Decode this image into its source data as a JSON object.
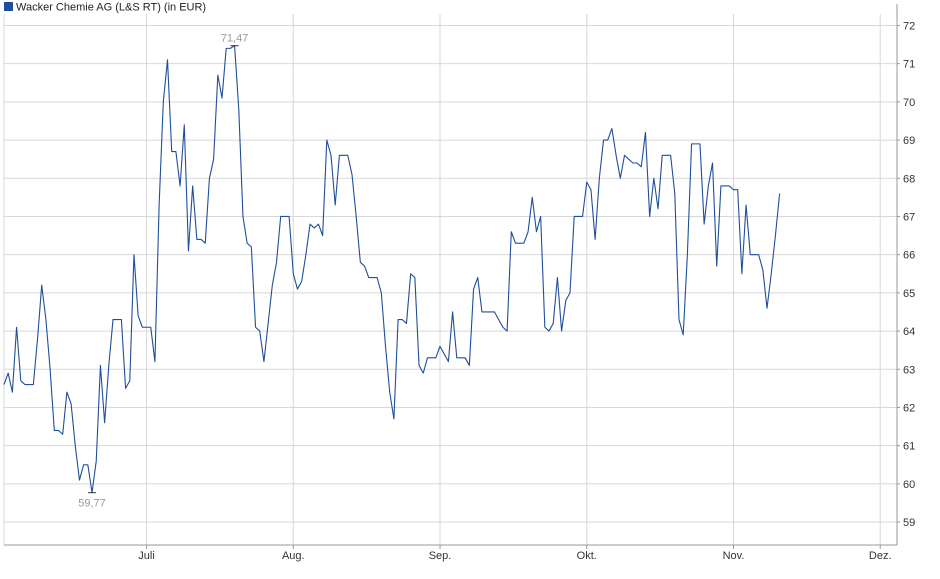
{
  "legend": {
    "label": "Wacker Chemie AG (L&S RT) (in EUR)"
  },
  "colors": {
    "line": "#1f4e9c",
    "grid": "#d8d8d8",
    "axis": "#999999",
    "legend_box": "#1f4e9c",
    "annotation": "#999999"
  },
  "chart_data": {
    "type": "line",
    "title": "",
    "series": [
      {
        "name": "Wacker Chemie AG (L&S RT) (in EUR)",
        "values": [
          62.6,
          62.9,
          62.4,
          64.1,
          62.7,
          62.6,
          62.6,
          62.6,
          63.8,
          65.2,
          64.3,
          63.0,
          61.4,
          61.4,
          61.3,
          62.4,
          62.1,
          61.0,
          60.1,
          60.5,
          60.5,
          59.77,
          60.6,
          63.1,
          61.6,
          63.1,
          64.3,
          64.3,
          64.3,
          62.5,
          62.7,
          66.0,
          64.4,
          64.1,
          64.1,
          64.1,
          63.2,
          67.3,
          70.0,
          71.1,
          68.7,
          68.7,
          67.8,
          69.4,
          66.1,
          67.8,
          66.4,
          66.4,
          66.3,
          68.0,
          68.5,
          70.7,
          70.1,
          71.4,
          71.4,
          71.47,
          69.8,
          67.0,
          66.3,
          66.2,
          64.1,
          64.0,
          63.2,
          64.2,
          65.2,
          65.8,
          67.0,
          67.0,
          67.0,
          65.5,
          65.1,
          65.3,
          66.0,
          66.8,
          66.7,
          66.8,
          66.5,
          69.0,
          68.6,
          67.3,
          68.6,
          68.6,
          68.6,
          68.1,
          67.0,
          65.8,
          65.7,
          65.4,
          65.4,
          65.4,
          65.0,
          63.6,
          62.4,
          61.7,
          64.3,
          64.3,
          64.2,
          65.5,
          65.4,
          63.1,
          62.9,
          63.3,
          63.3,
          63.3,
          63.6,
          63.4,
          63.2,
          64.5,
          63.3,
          63.3,
          63.3,
          63.1,
          65.1,
          65.4,
          64.5,
          64.5,
          64.5,
          64.5,
          64.3,
          64.1,
          64.0,
          66.6,
          66.3,
          66.3,
          66.3,
          66.6,
          67.5,
          66.6,
          67.0,
          64.1,
          64.0,
          64.2,
          65.4,
          64.0,
          64.8,
          65.0,
          67.0,
          67.0,
          67.0,
          67.9,
          67.7,
          66.4,
          68.0,
          69.0,
          69.0,
          69.3,
          68.6,
          68.0,
          68.6,
          68.5,
          68.4,
          68.4,
          68.3,
          69.2,
          67.0,
          68.0,
          67.2,
          68.6,
          68.6,
          68.6,
          67.6,
          64.3,
          63.9,
          66.0,
          68.9,
          68.9,
          68.9,
          66.8,
          67.8,
          68.4,
          65.7,
          67.8,
          67.8,
          67.8,
          67.7,
          67.7,
          65.5,
          67.3,
          66.0,
          66.0,
          66.0,
          65.6,
          64.6,
          65.5,
          66.5,
          67.6
        ]
      }
    ],
    "annotations": {
      "max": {
        "label": "71,47",
        "value": 71.47,
        "index": 55
      },
      "min": {
        "label": "59,77",
        "value": 59.77,
        "index": 21
      }
    },
    "x_ticks": [
      {
        "label": "Juli",
        "index": 34
      },
      {
        "label": "Aug.",
        "index": 69
      },
      {
        "label": "Sep.",
        "index": 104
      },
      {
        "label": "Okt.",
        "index": 139
      },
      {
        "label": "Nov.",
        "index": 174
      },
      {
        "label": "Dez.",
        "index": 209
      }
    ],
    "y_ticks": [
      59,
      60,
      61,
      62,
      63,
      64,
      65,
      66,
      67,
      68,
      69,
      70,
      71,
      72
    ],
    "ylim": [
      58.4,
      72.3
    ],
    "x_count": 214,
    "y_axis_position": "right",
    "grid": true,
    "legend_position": "top-left"
  }
}
